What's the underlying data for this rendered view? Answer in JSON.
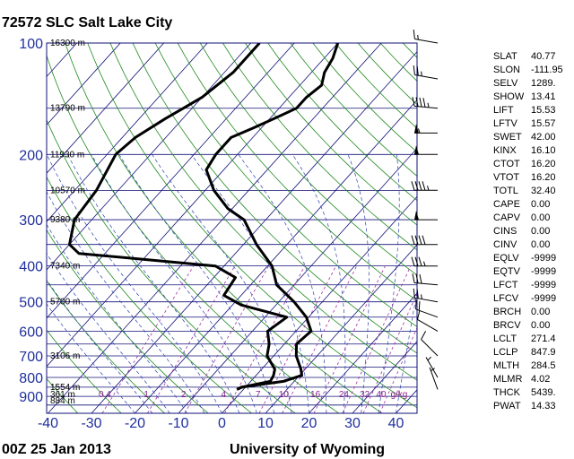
{
  "header": {
    "title": "72572 SLC Salt Lake City",
    "time": "00Z 25 Jan 2013",
    "source": "University of Wyoming"
  },
  "colors": {
    "isobar": "#101078",
    "isotherm": "#101078",
    "dry_adiabat": "#1f8a1f",
    "moist_adiabat": "#2a3fb0",
    "mixing_ratio": "#a02aa0",
    "profile": "#000000",
    "pressure_label": "#1f2f9f"
  },
  "chart_data": {
    "type": "line",
    "title": "72572 SLC Salt Lake City",
    "xlabel": "",
    "ylabel": "",
    "xlim": [
      -40,
      45
    ],
    "ylim": [
      1000,
      100
    ],
    "y_scale": "log",
    "grid": true,
    "x_ticks": [
      -40,
      -30,
      -20,
      -10,
      0,
      10,
      20,
      30,
      40
    ],
    "pressure_ticks": [
      100,
      200,
      300,
      400,
      500,
      600,
      700,
      800,
      900
    ],
    "height_labels": [
      {
        "p": 100,
        "text": "16300 m"
      },
      {
        "p": 150,
        "text": "13790 m"
      },
      {
        "p": 200,
        "text": "11930 m"
      },
      {
        "p": 250,
        "text": "10570 m"
      },
      {
        "p": 300,
        "text": "9380 m"
      },
      {
        "p": 400,
        "text": "7340 m"
      },
      {
        "p": 500,
        "text": "5700 m"
      },
      {
        "p": 700,
        "text": "3106 m"
      },
      {
        "p": 850,
        "text": "1554 m"
      },
      {
        "p": 925,
        "text": "884 m"
      },
      {
        "p": 1000,
        "text": "361 m"
      }
    ],
    "mixing_ratio_labels": [
      "0.4",
      "1",
      "2",
      "4",
      "7",
      "10",
      "16",
      "24",
      "32",
      "40",
      "g/kg"
    ],
    "series": [
      {
        "name": "Temperature",
        "points": [
          [
            862,
            -1.5
          ],
          [
            850,
            -1.0
          ],
          [
            820,
            7.5
          ],
          [
            790,
            10.5
          ],
          [
            760,
            9.0
          ],
          [
            700,
            5.2
          ],
          [
            650,
            2.8
          ],
          [
            600,
            3.5
          ],
          [
            550,
            -0.5
          ],
          [
            500,
            -6.5
          ],
          [
            450,
            -14
          ],
          [
            400,
            -19
          ],
          [
            350,
            -27
          ],
          [
            300,
            -35
          ],
          [
            280,
            -41
          ],
          [
            250,
            -48
          ],
          [
            220,
            -54
          ],
          [
            200,
            -55
          ],
          [
            180,
            -55
          ],
          [
            170,
            -52
          ],
          [
            160,
            -49
          ],
          [
            150,
            -46
          ],
          [
            140,
            -46
          ],
          [
            130,
            -45
          ],
          [
            120,
            -47
          ],
          [
            110,
            -48
          ],
          [
            100,
            -50
          ]
        ]
      },
      {
        "name": "Dewpoint",
        "points": [
          [
            862,
            -1.5
          ],
          [
            850,
            -0.8
          ],
          [
            820,
            4.5
          ],
          [
            790,
            4.0
          ],
          [
            760,
            3.0
          ],
          [
            700,
            -1.5
          ],
          [
            650,
            -3.5
          ],
          [
            600,
            -6.5
          ],
          [
            550,
            -5.0
          ],
          [
            510,
            -18
          ],
          [
            480,
            -24
          ],
          [
            430,
            -25
          ],
          [
            400,
            -32
          ],
          [
            370,
            -66
          ],
          [
            350,
            -70
          ],
          [
            300,
            -74
          ],
          [
            250,
            -75
          ],
          [
            200,
            -78
          ],
          [
            180,
            -77
          ],
          [
            160,
            -74
          ],
          [
            150,
            -72
          ],
          [
            140,
            -70
          ],
          [
            120,
            -68
          ],
          [
            100,
            -68
          ]
        ]
      }
    ]
  },
  "indices": [
    {
      "label": "SLAT",
      "value": "40.77"
    },
    {
      "label": "SLON",
      "value": "-111.95"
    },
    {
      "label": "SELV",
      "value": "1289."
    },
    {
      "label": "SHOW",
      "value": "13.41"
    },
    {
      "label": "LIFT",
      "value": "15.53"
    },
    {
      "label": "LFTV",
      "value": "15.57"
    },
    {
      "label": "SWET",
      "value": "42.00"
    },
    {
      "label": "KINX",
      "value": "16.10"
    },
    {
      "label": "CTOT",
      "value": "16.20"
    },
    {
      "label": "VTOT",
      "value": "16.20"
    },
    {
      "label": "TOTL",
      "value": "32.40"
    },
    {
      "label": "CAPE",
      "value": "0.00"
    },
    {
      "label": "CAPV",
      "value": "0.00"
    },
    {
      "label": "CINS",
      "value": "0.00"
    },
    {
      "label": "CINV",
      "value": "0.00"
    },
    {
      "label": "EQLV",
      "value": "-9999"
    },
    {
      "label": "EQTV",
      "value": "-9999"
    },
    {
      "label": "LFCT",
      "value": "-9999"
    },
    {
      "label": "LFCV",
      "value": "-9999"
    },
    {
      "label": "BRCH",
      "value": "0.00"
    },
    {
      "label": "BRCV",
      "value": "0.00"
    },
    {
      "label": "LCLT",
      "value": "271.4"
    },
    {
      "label": "LCLP",
      "value": "847.9"
    },
    {
      "label": "MLTH",
      "value": "284.5"
    },
    {
      "label": "MLMR",
      "value": "4.02"
    },
    {
      "label": "THCK",
      "value": "5439."
    },
    {
      "label": "PWAT",
      "value": "14.33"
    }
  ],
  "wind_barbs": [
    {
      "p": 100,
      "dir": 280,
      "spd": 15
    },
    {
      "p": 125,
      "dir": 280,
      "spd": 25
    },
    {
      "p": 150,
      "dir": 275,
      "spd": 45
    },
    {
      "p": 175,
      "dir": 270,
      "spd": 55
    },
    {
      "p": 200,
      "dir": 270,
      "spd": 50
    },
    {
      "p": 250,
      "dir": 270,
      "spd": 45
    },
    {
      "p": 300,
      "dir": 270,
      "spd": 50
    },
    {
      "p": 350,
      "dir": 270,
      "spd": 40
    },
    {
      "p": 400,
      "dir": 270,
      "spd": 35
    },
    {
      "p": 450,
      "dir": 275,
      "spd": 30
    },
    {
      "p": 500,
      "dir": 280,
      "spd": 25
    },
    {
      "p": 550,
      "dir": 290,
      "spd": 20
    },
    {
      "p": 600,
      "dir": 300,
      "spd": 10
    },
    {
      "p": 700,
      "dir": 315,
      "spd": 10
    },
    {
      "p": 800,
      "dir": 330,
      "spd": 5
    },
    {
      "p": 862,
      "dir": 340,
      "spd": 5
    }
  ]
}
